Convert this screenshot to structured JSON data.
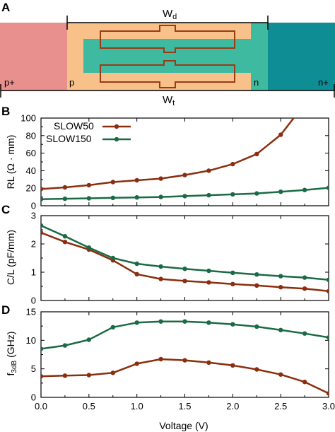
{
  "colors": {
    "slow50": "#8b2e0f",
    "slow150": "#1a6b45",
    "p_plus": "#e8908e",
    "p_region": "#f8c18a",
    "n_region": "#3dbaa0",
    "n_plus": "#0e8d95",
    "electrode": "#9a3b16"
  },
  "diagram": {
    "panel_label": "A",
    "regions": [
      "p+",
      "p",
      "n",
      "n+"
    ],
    "wd_label": "W",
    "wd_sub": "d",
    "wt_label": "W",
    "wt_sub": "t"
  },
  "legend": [
    "SLOW50",
    "SLOW150"
  ],
  "chart_data": [
    {
      "type": "line",
      "panel_label": "B",
      "ylabel": "RL (Ω · mm)",
      "ylim": [
        0,
        100
      ],
      "yticks": [
        0,
        20,
        40,
        60,
        80,
        100
      ],
      "xlim": [
        0,
        3
      ],
      "x": [
        0,
        0.25,
        0.5,
        0.75,
        1.0,
        1.25,
        1.5,
        1.75,
        2.0,
        2.25,
        2.5
      ],
      "series": [
        {
          "name": "SLOW50",
          "x": [
            0,
            0.25,
            0.5,
            0.75,
            1.0,
            1.25,
            1.5,
            1.75,
            2.0,
            2.25,
            2.5,
            2.65
          ],
          "values": [
            19,
            21,
            23.5,
            27,
            29,
            31,
            35,
            40,
            47.5,
            59,
            81,
            102
          ]
        },
        {
          "name": "SLOW150",
          "x": [
            0,
            0.25,
            0.5,
            0.75,
            1.0,
            1.25,
            1.5,
            1.75,
            2.0,
            2.25,
            2.5,
            2.75,
            3.0
          ],
          "values": [
            7.5,
            8,
            8.5,
            9,
            9.5,
            10,
            11,
            12,
            13,
            14,
            16,
            18,
            20.5
          ]
        }
      ]
    },
    {
      "type": "line",
      "panel_label": "C",
      "ylabel": "C/L (pF/mm)",
      "ylim": [
        0,
        3
      ],
      "yticks": [
        0,
        1,
        2,
        3
      ],
      "xlim": [
        0,
        3
      ],
      "x": [
        0,
        0.25,
        0.5,
        0.75,
        1.0,
        1.25,
        1.5,
        1.75,
        2.0,
        2.25,
        2.5,
        2.75,
        3.0
      ],
      "series": [
        {
          "name": "SLOW50",
          "values": [
            2.4,
            2.07,
            1.8,
            1.42,
            0.93,
            0.76,
            0.69,
            0.64,
            0.58,
            0.53,
            0.47,
            0.42,
            0.33
          ]
        },
        {
          "name": "SLOW150",
          "values": [
            2.65,
            2.27,
            1.87,
            1.5,
            1.3,
            1.2,
            1.12,
            1.05,
            0.98,
            0.92,
            0.86,
            0.81,
            0.73
          ]
        }
      ]
    },
    {
      "type": "line",
      "panel_label": "D",
      "ylabel_main": "f",
      "ylabel_sub": "3dB",
      "ylabel_rest": " (GHz)",
      "ylim": [
        0,
        15
      ],
      "yticks": [
        0,
        5,
        10,
        15
      ],
      "xlim": [
        0,
        3
      ],
      "xticks": [
        "0.0",
        "0.5",
        "1.0",
        "1.5",
        "2.0",
        "2.5",
        "3.0"
      ],
      "xlabel": "Voltage (V)",
      "x": [
        0,
        0.25,
        0.5,
        0.75,
        1.0,
        1.25,
        1.5,
        1.75,
        2.0,
        2.25,
        2.5,
        2.75,
        3.0
      ],
      "series": [
        {
          "name": "SLOW50",
          "values": [
            3.7,
            3.8,
            3.9,
            4.3,
            5.9,
            6.7,
            6.5,
            6.1,
            5.6,
            4.9,
            4.0,
            2.7,
            0.7
          ]
        },
        {
          "name": "SLOW150",
          "values": [
            8.5,
            9.1,
            10.1,
            12.3,
            13.1,
            13.3,
            13.3,
            13.1,
            12.8,
            12.4,
            11.8,
            11.2,
            10.5
          ]
        }
      ]
    }
  ]
}
